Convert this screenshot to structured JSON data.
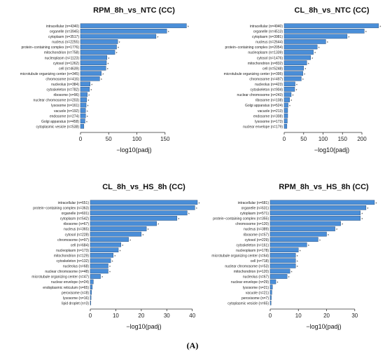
{
  "figure_label": "(A)",
  "colors": {
    "bar_fill": "#4a8ed8",
    "bar_stroke": "#1b3f6b",
    "axis": "#333333"
  },
  "chart_data": [
    {
      "type": "bar",
      "orientation": "horizontal",
      "title": "RPM_8h_vs_NTC (CC)",
      "xlabel": "−log10(padj)",
      "xlim": [
        0,
        190
      ],
      "xticks": [
        0,
        50,
        100,
        150
      ],
      "categories": [
        "intracellular (n=4340)",
        "organelle (n=3945)",
        "cytoplasm (n=3517)",
        "nucleus (n=2255)",
        "protein−containing complex (n=1776)",
        "mitochondrion (n=758)",
        "nucleoplasm (n=1123)",
        "cytosol (n=1262)",
        "cell (n=4639)",
        "microtubule organizing center (n=345)",
        "chromosome (n=416)",
        "nucleolus (n=384)",
        "cytoskeleton (n=782)",
        "ribosome (n=96)",
        "nuclear chromosome (n=203)",
        "lysosome (n=161)",
        "vacuole (n=192)",
        "endosome (n=274)",
        "Golgi apparatus (n=458)",
        "cytoplasmic vesicle (n=538)"
      ],
      "values": [
        188,
        153,
        134,
        66,
        64,
        61,
        47,
        46,
        45,
        37,
        34,
        17,
        16,
        12,
        11,
        10,
        9,
        9,
        8,
        6
      ],
      "marker": "*"
    },
    {
      "type": "bar",
      "orientation": "horizontal",
      "title": "CL_8h_vs_NTC (CC)",
      "xlabel": "−log10(padj)",
      "xlim": [
        0,
        245
      ],
      "xticks": [
        0,
        50,
        100,
        150,
        200
      ],
      "categories": [
        "intracellular (n=4940)",
        "organelle (n=4513)",
        "cytoplasm (n=3981)",
        "nucleus (n=2644)",
        "protein−containing complex (n=2054)",
        "nucleoplasm (n=1339)",
        "cytosol (n=1476)",
        "mitochondrion (n=832)",
        "cell (n=5248)",
        "microtubule organizing center (n=395)",
        "chromosome (n=497)",
        "nucleolus (n=423)",
        "cytoskeleton (n=904)",
        "nuclear chromosome (n=243)",
        "ribosome (n=108)",
        "Golgi apparatus (n=524)",
        "vacuole (n=213)",
        "endosome (n=308)",
        "lysosome (n=173)",
        "nuclear envelope (n=179)"
      ],
      "values": [
        243,
        206,
        162,
        107,
        85,
        75,
        68,
        58,
        50,
        48,
        44,
        28,
        27,
        18,
        14,
        10,
        9,
        9,
        8,
        7
      ],
      "marker": "*"
    },
    {
      "type": "bar",
      "orientation": "horizontal",
      "title": "CL_8h_vs_HS_8h (CC)",
      "xlabel": "−log10(padj)",
      "xlim": [
        0,
        42
      ],
      "xticks": [
        0,
        10,
        20,
        30,
        40
      ],
      "categories": [
        "intracellular (n=651)",
        "protein−containing complex (n=363)",
        "organelle (n=601)",
        "cytoplasm (n=542)",
        "ribosome (n=67)",
        "nucleus (n=365)",
        "cytosol (n=228)",
        "chromosome (n=97)",
        "cell (n=684)",
        "nucleoplasm (n=173)",
        "mitochondrion (n=129)",
        "cytoskeleton (n=132)",
        "nucleolus (n=68)",
        "nuclear chromosome (n=48)",
        "microtubule organizing center (n=47)",
        "nuclear envelope (n=24)",
        "endoplasmic reticulum (n=65)",
        "peroxisome (n=8)",
        "lysosome (n=16)",
        "lipid droplet (n=3)"
      ],
      "values": [
        42,
        41,
        38,
        34,
        26,
        22,
        20,
        15,
        12,
        11,
        9,
        8,
        7,
        7,
        4,
        1.2,
        0.8,
        0.5,
        0.3,
        0.2
      ],
      "marker": "*"
    },
    {
      "type": "bar",
      "orientation": "horizontal",
      "title": "RPM_8h_vs_HS_8h (CC)",
      "xlabel": "−log10(padj)",
      "xlim": [
        0,
        38
      ],
      "xticks": [
        0,
        10,
        20,
        30
      ],
      "categories": [
        "intracellular (n=681)",
        "organelle (n=631)",
        "cytoplasm (n=571)",
        "protein−containing complex (n=355)",
        "chromosome (n=120)",
        "nucleus (n=389)",
        "ribosome (n=57)",
        "cytosol (n=229)",
        "cytoskeleton (n=161)",
        "nucleoplasm (n=178)",
        "microtubule organizing center (n=64)",
        "cell (n=718)",
        "nuclear chromosome (n=53)",
        "mitochondrion (n=120)",
        "nucleolus (n=67)",
        "nuclear envelope (n=29)",
        "lysosome (n=21)",
        "vacuole (n=21)",
        "peroxisome (n=7)",
        "cytoplasmic vesicle (n=65)"
      ],
      "values": [
        37,
        34,
        32,
        32,
        25,
        23,
        20,
        17,
        13,
        10,
        9,
        9,
        9,
        7,
        6,
        2,
        0.8,
        0.6,
        0.4,
        0.3
      ],
      "marker": "*"
    }
  ]
}
